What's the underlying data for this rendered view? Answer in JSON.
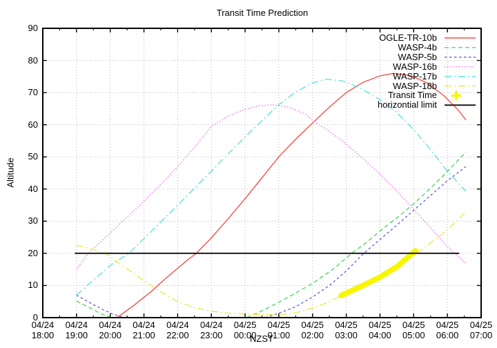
{
  "title": "Transit Time Prediction",
  "axes": {
    "x_label": "NZST",
    "y_label": "Altitude",
    "x_ticks": [
      {
        "date": "04/24",
        "time": "18:00"
      },
      {
        "date": "04/24",
        "time": "19:00"
      },
      {
        "date": "04/24",
        "time": "20:00"
      },
      {
        "date": "04/24",
        "time": "21:00"
      },
      {
        "date": "04/24",
        "time": "22:00"
      },
      {
        "date": "04/24",
        "time": "23:00"
      },
      {
        "date": "04/25",
        "time": "00:00"
      },
      {
        "date": "04/25",
        "time": "01:00"
      },
      {
        "date": "04/25",
        "time": "02:00"
      },
      {
        "date": "04/25",
        "time": "03:00"
      },
      {
        "date": "04/25",
        "time": "04:00"
      },
      {
        "date": "04/25",
        "time": "05:00"
      },
      {
        "date": "04/25",
        "time": "06:00"
      },
      {
        "date": "04/25",
        "time": "07:00"
      }
    ],
    "y_ticks": [
      0,
      10,
      20,
      30,
      40,
      50,
      60,
      70,
      80,
      90
    ]
  },
  "legend": [
    {
      "label": "OGLE-TR-10b",
      "style": "line",
      "series": 0
    },
    {
      "label": "WASP-4b",
      "style": "line",
      "series": 1
    },
    {
      "label": "WASP-5b",
      "style": "line",
      "series": 2
    },
    {
      "label": "WASP-16b",
      "style": "line",
      "series": 3
    },
    {
      "label": "WASP-17b",
      "style": "line",
      "series": 4
    },
    {
      "label": "WASP-18b",
      "style": "line",
      "series": 5
    },
    {
      "label": "Transit Time",
      "style": "marker",
      "series": 6
    },
    {
      "label": "horizontial limit",
      "style": "line",
      "series": 7
    }
  ],
  "colors": {
    "grid": "#b4b4b4",
    "border": "#000000",
    "text": "#000000"
  },
  "chart_data": {
    "type": "line",
    "title": "Transit Time Prediction",
    "xlabel": "NZST",
    "ylabel": "Altitude",
    "x_unit": "hours after 04/24 18:00 NZST",
    "xlim": [
      0,
      13
    ],
    "ylim": [
      0,
      90
    ],
    "grid": true,
    "legend_position": "top-right",
    "series": [
      {
        "name": "OGLE-TR-10b",
        "color": "#f25149",
        "dash": "",
        "width": 1.4,
        "segments": [
          [
            [
              2.2,
              0
            ],
            [
              2.7,
              3.8
            ],
            [
              3.2,
              8
            ],
            [
              3.7,
              12.7
            ],
            [
              4.3,
              18
            ],
            [
              4.55,
              20
            ],
            [
              5,
              24.8
            ],
            [
              5.5,
              30.8
            ],
            [
              6,
              37
            ],
            [
              6.5,
              43.5
            ],
            [
              7,
              50
            ],
            [
              7.5,
              55.5
            ],
            [
              8,
              60.5
            ],
            [
              8.5,
              65.5
            ],
            [
              9,
              70
            ],
            [
              9.5,
              73.2
            ],
            [
              10,
              75.2
            ],
            [
              10.4,
              76
            ],
            [
              10.9,
              75.3
            ],
            [
              11.4,
              73
            ],
            [
              11.9,
              69
            ],
            [
              12.3,
              64.8
            ],
            [
              12.55,
              61.5
            ]
          ]
        ]
      },
      {
        "name": "WASP-4b",
        "color": "#46d455",
        "dash": "6,4",
        "width": 1.3,
        "segments": [
          [
            [
              1,
              5.2
            ],
            [
              1.4,
              3
            ],
            [
              1.75,
              1.1
            ],
            [
              2.03,
              0
            ]
          ],
          [
            [
              6.05,
              0
            ],
            [
              6.5,
              2.1
            ],
            [
              7,
              4.8
            ],
            [
              7.5,
              7.6
            ],
            [
              8,
              10.7
            ],
            [
              8.6,
              15
            ],
            [
              9.16,
              20
            ],
            [
              9.6,
              23.4
            ],
            [
              10,
              27
            ],
            [
              10.5,
              31
            ],
            [
              11,
              35.4
            ],
            [
              11.5,
              40.3
            ],
            [
              12,
              45.5
            ],
            [
              12.55,
              51.5
            ]
          ]
        ]
      },
      {
        "name": "WASP-5b",
        "color": "#5c5cdb",
        "dash": "3.5,3.5",
        "width": 1.3,
        "segments": [
          [
            [
              1,
              7
            ],
            [
              1.4,
              4.6
            ],
            [
              1.8,
              2.4
            ],
            [
              2.1,
              1
            ],
            [
              2.35,
              0.2
            ]
          ],
          [
            [
              6.6,
              0
            ],
            [
              7,
              1.4
            ],
            [
              7.5,
              3.4
            ],
            [
              8,
              6.4
            ],
            [
              8.5,
              10
            ],
            [
              9,
              14.5
            ],
            [
              9.52,
              20
            ],
            [
              10,
              24.3
            ],
            [
              10.5,
              28.8
            ],
            [
              11,
              33.4
            ],
            [
              11.5,
              38
            ],
            [
              12,
              42.6
            ],
            [
              12.55,
              47
            ]
          ]
        ]
      },
      {
        "name": "WASP-16b",
        "color": "#ee82ee",
        "dash": "1.5,2.6",
        "width": 1.6,
        "segments": [
          [
            [
              1,
              15
            ],
            [
              1.35,
              20
            ],
            [
              2,
              26.3
            ],
            [
              2.5,
              31.3
            ],
            [
              3,
              36.3
            ],
            [
              3.5,
              41.5
            ],
            [
              4,
              47
            ],
            [
              4.5,
              53
            ],
            [
              5,
              59.5
            ],
            [
              5.5,
              62.7
            ],
            [
              6,
              64.8
            ],
            [
              6.4,
              65.9
            ],
            [
              6.8,
              66.2
            ],
            [
              7.3,
              65.5
            ],
            [
              7.8,
              63.2
            ],
            [
              8.05,
              61
            ],
            [
              8.5,
              57.9
            ],
            [
              9,
              54
            ],
            [
              9.5,
              49.5
            ],
            [
              10,
              44.6
            ],
            [
              10.5,
              39.3
            ],
            [
              11,
              33.7
            ],
            [
              11.5,
              28
            ],
            [
              12,
              22
            ],
            [
              12.35,
              18.8
            ],
            [
              12.55,
              16.8
            ]
          ]
        ]
      },
      {
        "name": "WASP-17b",
        "color": "#4fe3e3",
        "dash": "10,4,2,4",
        "width": 1.3,
        "segments": [
          [
            [
              1,
              7
            ],
            [
              1.5,
              11.7
            ],
            [
              2,
              16.2
            ],
            [
              2.55,
              20
            ],
            [
              3,
              24.6
            ],
            [
              3.5,
              29.8
            ],
            [
              4,
              35
            ],
            [
              4.5,
              40.3
            ],
            [
              5,
              45.6
            ],
            [
              5.5,
              51
            ],
            [
              6,
              56.2
            ],
            [
              6.5,
              61.3
            ],
            [
              7,
              66.2
            ],
            [
              7.5,
              70.2
            ],
            [
              8,
              73
            ],
            [
              8.4,
              74.2
            ],
            [
              8.9,
              73.6
            ],
            [
              9.4,
              71.5
            ],
            [
              10,
              67.8
            ],
            [
              10.5,
              63.8
            ],
            [
              11,
              58.5
            ],
            [
              11.5,
              52.3
            ],
            [
              12,
              45.5
            ],
            [
              12.55,
              39.3
            ]
          ]
        ]
      },
      {
        "name": "WASP-18b",
        "color": "#e8e83c",
        "dash": "10,4,2,4",
        "width": 1.3,
        "segments": [
          [
            [
              1,
              22.5
            ],
            [
              1.5,
              21.2
            ],
            [
              1.85,
              20
            ],
            [
              2.5,
              15.2
            ],
            [
              3,
              11.5
            ],
            [
              3.5,
              8
            ],
            [
              4,
              5
            ],
            [
              4.5,
              3.1
            ],
            [
              5,
              2
            ],
            [
              5.5,
              1.4
            ],
            [
              6,
              1.1
            ],
            [
              6.5,
              0.9
            ],
            [
              7,
              0.9
            ],
            [
              7.5,
              1.5
            ],
            [
              8,
              2.9
            ],
            [
              8.5,
              4.9
            ],
            [
              8.85,
              6.9
            ],
            [
              9.5,
              10
            ],
            [
              10,
              12.6
            ],
            [
              10.5,
              15.8
            ],
            [
              11,
              19.3
            ],
            [
              11.5,
              23.2
            ],
            [
              12,
              27.3
            ],
            [
              12.55,
              33
            ]
          ]
        ]
      },
      {
        "name": "Transit Time",
        "color": "#f6f600",
        "dash": "",
        "width": 8,
        "linecap": "round",
        "segments": [
          [
            [
              8.85,
              6.9
            ],
            [
              9.5,
              10
            ],
            [
              10,
              12.6
            ],
            [
              10.5,
              15.8
            ],
            [
              11.05,
              20.8
            ]
          ]
        ]
      },
      {
        "name": "horizontial limit",
        "color": "#1a1a1a",
        "dash": "",
        "width": 2,
        "segments": [
          [
            [
              0.95,
              20
            ],
            [
              12.35,
              20
            ]
          ]
        ]
      }
    ]
  }
}
